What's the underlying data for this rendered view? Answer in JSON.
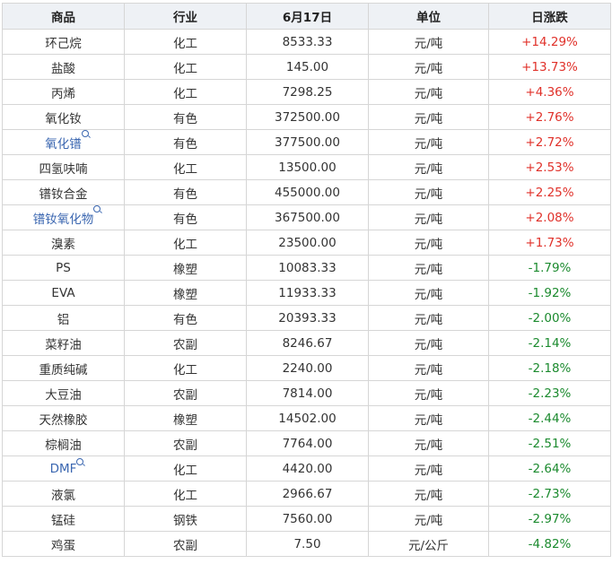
{
  "headers": [
    "商品",
    "行业",
    "6月17日",
    "单位",
    "日涨跌"
  ],
  "colors": {
    "up": "#e0312a",
    "down": "#1b8a2e",
    "link": "#3a66b0",
    "header_bg": "#eef1f5"
  },
  "rows": [
    {
      "name": "环己烷",
      "industry": "化工",
      "price": "8533.33",
      "unit": "元/吨",
      "change": "+14.29%",
      "dir": "up",
      "link": false
    },
    {
      "name": "盐酸",
      "industry": "化工",
      "price": "145.00",
      "unit": "元/吨",
      "change": "+13.73%",
      "dir": "up",
      "link": false
    },
    {
      "name": "丙烯",
      "industry": "化工",
      "price": "7298.25",
      "unit": "元/吨",
      "change": "+4.36%",
      "dir": "up",
      "link": false
    },
    {
      "name": "氧化钕",
      "industry": "有色",
      "price": "372500.00",
      "unit": "元/吨",
      "change": "+2.76%",
      "dir": "up",
      "link": false
    },
    {
      "name": "氧化镨",
      "industry": "有色",
      "price": "377500.00",
      "unit": "元/吨",
      "change": "+2.72%",
      "dir": "up",
      "link": true
    },
    {
      "name": "四氢呋喃",
      "industry": "化工",
      "price": "13500.00",
      "unit": "元/吨",
      "change": "+2.53%",
      "dir": "up",
      "link": false
    },
    {
      "name": "镨钕合金",
      "industry": "有色",
      "price": "455000.00",
      "unit": "元/吨",
      "change": "+2.25%",
      "dir": "up",
      "link": false
    },
    {
      "name": "镨钕氧化物",
      "industry": "有色",
      "price": "367500.00",
      "unit": "元/吨",
      "change": "+2.08%",
      "dir": "up",
      "link": true
    },
    {
      "name": "溴素",
      "industry": "化工",
      "price": "23500.00",
      "unit": "元/吨",
      "change": "+1.73%",
      "dir": "up",
      "link": false
    },
    {
      "name": "PS",
      "industry": "橡塑",
      "price": "10083.33",
      "unit": "元/吨",
      "change": "-1.79%",
      "dir": "down",
      "link": false
    },
    {
      "name": "EVA",
      "industry": "橡塑",
      "price": "11933.33",
      "unit": "元/吨",
      "change": "-1.92%",
      "dir": "down",
      "link": false
    },
    {
      "name": "铝",
      "industry": "有色",
      "price": "20393.33",
      "unit": "元/吨",
      "change": "-2.00%",
      "dir": "down",
      "link": false
    },
    {
      "name": "菜籽油",
      "industry": "农副",
      "price": "8246.67",
      "unit": "元/吨",
      "change": "-2.14%",
      "dir": "down",
      "link": false
    },
    {
      "name": "重质纯碱",
      "industry": "化工",
      "price": "2240.00",
      "unit": "元/吨",
      "change": "-2.18%",
      "dir": "down",
      "link": false
    },
    {
      "name": "大豆油",
      "industry": "农副",
      "price": "7814.00",
      "unit": "元/吨",
      "change": "-2.23%",
      "dir": "down",
      "link": false
    },
    {
      "name": "天然橡胶",
      "industry": "橡塑",
      "price": "14502.00",
      "unit": "元/吨",
      "change": "-2.44%",
      "dir": "down",
      "link": false
    },
    {
      "name": "棕榈油",
      "industry": "农副",
      "price": "7764.00",
      "unit": "元/吨",
      "change": "-2.51%",
      "dir": "down",
      "link": false
    },
    {
      "name": "DMF",
      "industry": "化工",
      "price": "4420.00",
      "unit": "元/吨",
      "change": "-2.64%",
      "dir": "down",
      "link": true
    },
    {
      "name": "液氯",
      "industry": "化工",
      "price": "2966.67",
      "unit": "元/吨",
      "change": "-2.73%",
      "dir": "down",
      "link": false
    },
    {
      "name": "锰硅",
      "industry": "钢铁",
      "price": "7560.00",
      "unit": "元/吨",
      "change": "-2.97%",
      "dir": "down",
      "link": false
    },
    {
      "name": "鸡蛋",
      "industry": "农副",
      "price": "7.50",
      "unit": "元/公斤",
      "change": "-4.82%",
      "dir": "down",
      "link": false
    }
  ]
}
